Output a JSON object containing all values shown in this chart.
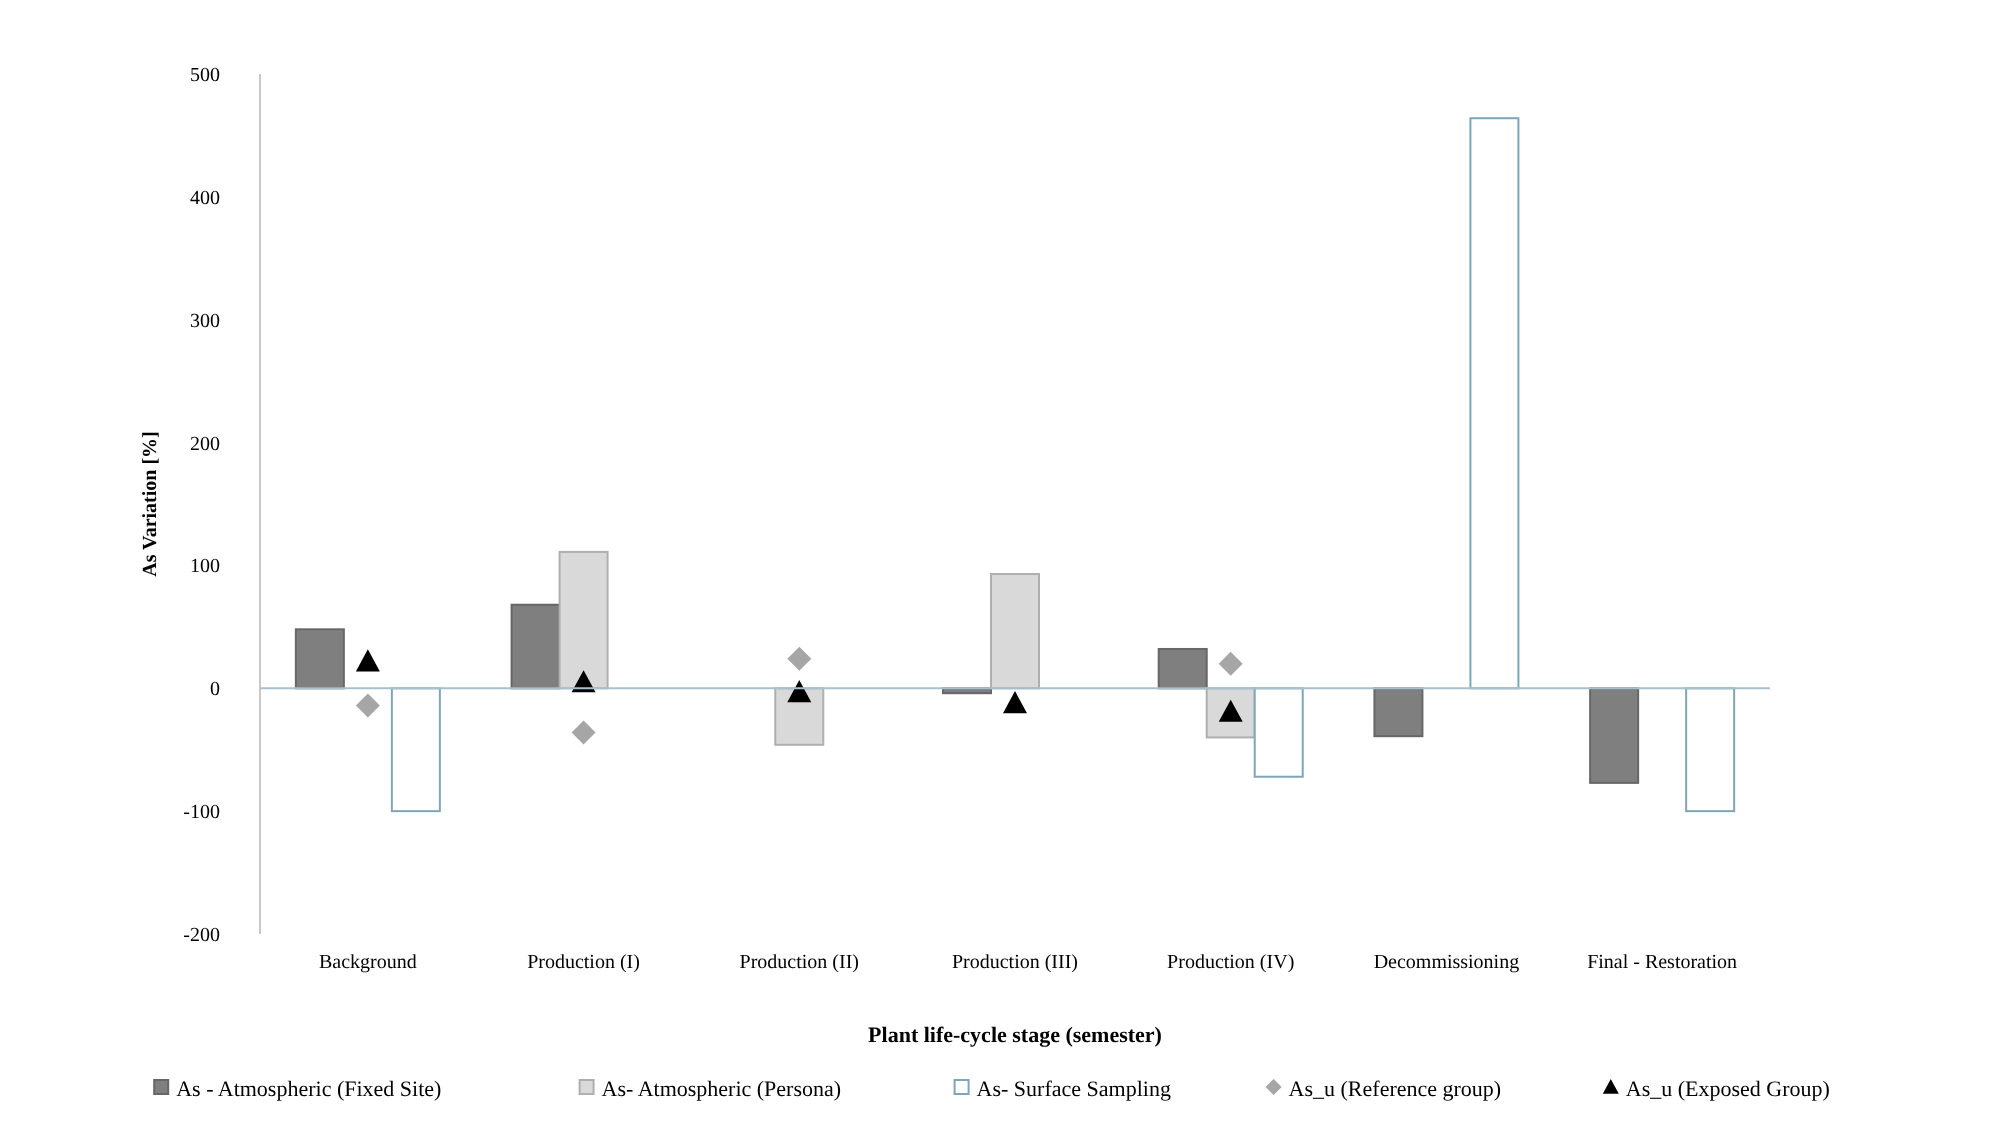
{
  "chart_data": {
    "type": "bar",
    "xlabel": "Plant life-cycle stage (semester)",
    "ylabel": "As Variation  [%]",
    "categories": [
      "Background",
      "Production (I)",
      "Production (II)",
      "Production (III)",
      "Production (IV)",
      "Decommissioning",
      "Final  - Restoration"
    ],
    "series": [
      {
        "name": "As - Atmospheric (Fixed Site)",
        "color": "#7f7f7f",
        "values": [
          48,
          68,
          null,
          -4,
          32,
          -39,
          -77
        ]
      },
      {
        "name": "As- Atmospheric (Persona)",
        "color": "#d9d9d9",
        "values": [
          null,
          111,
          -46,
          93,
          -40,
          null,
          null
        ]
      },
      {
        "name": "As- Surface Sampling",
        "color": "#ffffff",
        "values": [
          -100,
          null,
          null,
          null,
          -72,
          464,
          -100
        ]
      },
      {
        "name": "As_u (Reference group)",
        "type": "scatter",
        "marker": "diamond",
        "color": "#a6a6a6",
        "x": [
          "Background",
          "Production (I)",
          "Production (II)",
          "Production (IV)"
        ],
        "values": [
          -14,
          -36,
          24,
          20
        ]
      },
      {
        "name": "As_u (Exposed Group)",
        "type": "scatter",
        "marker": "triangle",
        "color": "#000000",
        "x": [
          "Background",
          "Production (I)",
          "Production (II)",
          "Production (III)",
          "Production (IV)"
        ],
        "values": [
          22,
          5,
          -3,
          -12,
          -19
        ]
      }
    ],
    "ylim": [
      -200,
      500
    ],
    "yticks": [
      -200,
      -100,
      0,
      100,
      200,
      300,
      400,
      500
    ],
    "grid": false,
    "ref_lines": [
      {
        "axis": "y",
        "value": 0,
        "color": "#a8c0cc"
      }
    ],
    "legend": "bottom"
  }
}
